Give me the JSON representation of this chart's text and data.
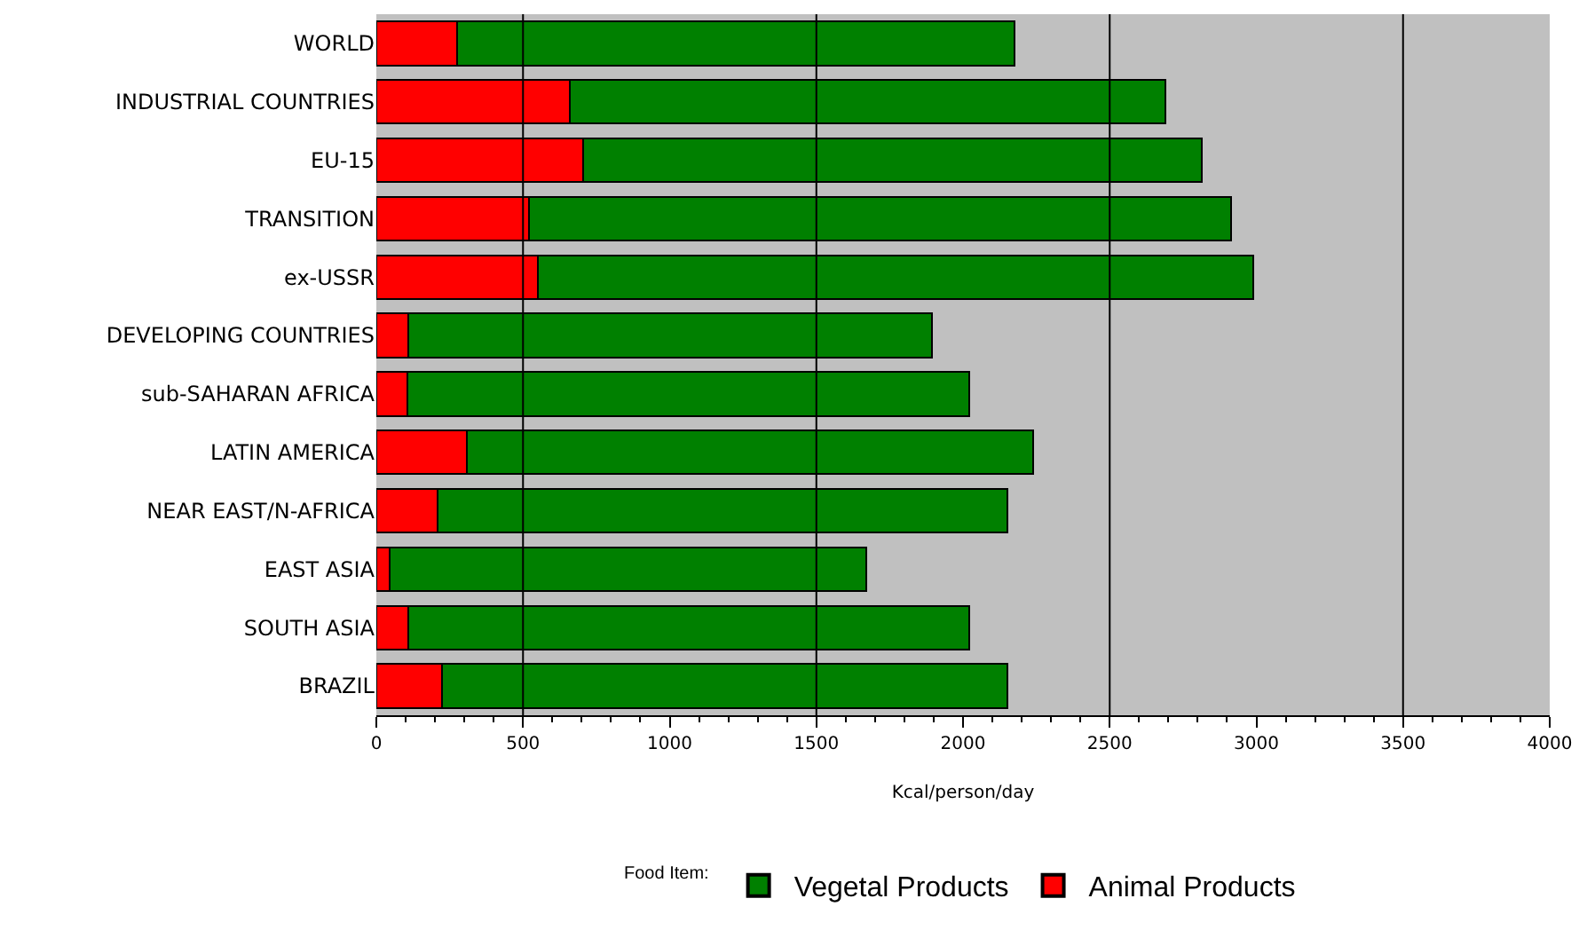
{
  "chart_data": {
    "type": "bar",
    "orientation": "horizontal",
    "stacked": true,
    "categories": [
      "WORLD",
      "INDUSTRIAL COUNTRIES",
      "EU-15",
      "TRANSITION",
      "ex-USSR",
      "DEVELOPING COUNTRIES",
      "sub-SAHARAN AFRICA",
      "LATIN AMERICA",
      "NEAR EAST/N-AFRICA",
      "EAST ASIA",
      "SOUTH ASIA",
      "BRAZIL"
    ],
    "series": [
      {
        "name": "Animal Products",
        "color": "#ff0000",
        "values": [
          275,
          660,
          705,
          520,
          550,
          110,
          105,
          310,
          210,
          45,
          110,
          225
        ]
      },
      {
        "name": "Vegetal Products",
        "color": "#008000",
        "values": [
          1900,
          2030,
          2110,
          2395,
          2440,
          1785,
          1915,
          1930,
          1940,
          1625,
          1910,
          1925
        ]
      }
    ],
    "xlabel": "Kcal/person/day",
    "legend_title": "Food Item:",
    "legend": "bottom",
    "xlim": [
      0,
      4000
    ],
    "xticks": [
      0,
      500,
      1000,
      1500,
      2000,
      2500,
      3000,
      3500,
      4000
    ],
    "grid": false,
    "ref_lines": [
      {
        "axis": "x",
        "value": 500,
        "label": null,
        "color": "#000000"
      },
      {
        "axis": "x",
        "value": 1500,
        "label": null,
        "color": "#000000"
      },
      {
        "axis": "x",
        "value": 2500,
        "label": null,
        "color": "#000000"
      },
      {
        "axis": "x",
        "value": 3500,
        "label": null,
        "color": "#000000"
      }
    ]
  }
}
